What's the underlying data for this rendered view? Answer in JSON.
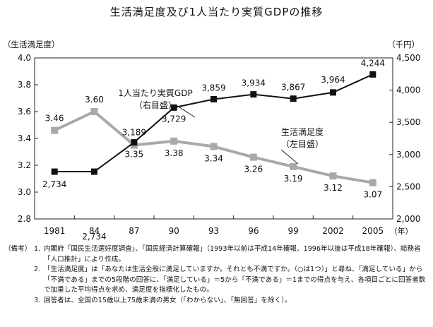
{
  "chart_data": {
    "type": "line",
    "title": "生活満足度及び1人当たり実質GDPの推移",
    "left_axis_label": "（生活満足度）",
    "right_axis_label": "（千円）",
    "x_unit": "（年）",
    "categories": [
      "1981",
      "84",
      "87",
      "90",
      "93",
      "96",
      "99",
      "2002",
      "2005"
    ],
    "left_ylim": [
      2.8,
      4.0
    ],
    "left_ticks": [
      "2.8",
      "3.0",
      "3.2",
      "3.4",
      "3.6",
      "3.8",
      "4.0"
    ],
    "right_ylim": [
      2000,
      4500
    ],
    "right_ticks": [
      "2,000",
      "2,500",
      "3,000",
      "3,500",
      "4,000",
      "4,500"
    ],
    "grid": false,
    "series": [
      {
        "name": "1人当たり実質GDP（右目盛）",
        "axis": "right",
        "color": "#111111",
        "values": [
          2734,
          2734,
          3189,
          3729,
          3859,
          3934,
          3867,
          3964,
          4244
        ],
        "labels": [
          "2,734",
          "2,734",
          "3,189",
          "3,729",
          "3,859",
          "3,934",
          "3,867",
          "3,964",
          "4,244"
        ],
        "label_lines": [
          "1人当たり実質GDP",
          "（右目盛）"
        ]
      },
      {
        "name": "生活満足度（左目盛）",
        "axis": "left",
        "color": "#a9a9a9",
        "values": [
          3.46,
          3.6,
          3.35,
          3.38,
          3.34,
          3.26,
          3.19,
          3.12,
          3.07
        ],
        "labels": [
          "3.46",
          "3.60",
          "3.35",
          "3.38",
          "3.34",
          "3.26",
          "3.19",
          "3.12",
          "3.07"
        ],
        "label_lines": [
          "生活満足度",
          "（左目盛）"
        ]
      }
    ]
  },
  "notes": {
    "head": "（備考）",
    "items": [
      {
        "num": "1.",
        "text": "内閣府「国民生活選好度調査」、「国民経済計算確報」（1993年以前は平成14年確報、1996年以後は平成18年確報）、総務省「人口推計」により作成。"
      },
      {
        "num": "2.",
        "text": "「生活満足度」は「あなたは生活全般に満足していますか。それとも不満ですか。（○は1つ）」と尋ね、「満足している」から「不満である」までの5段階の回答に、「満足している」＝5から「不満である」＝1までの得点を与え、各項目ごとに回答者数で加重した平均得点を求め、満足度を指標化したもの。"
      },
      {
        "num": "3.",
        "text": "回答者は、全国の15歳以上75歳未満の男女（「わからない」、「無回答」を除く）。"
      }
    ]
  }
}
